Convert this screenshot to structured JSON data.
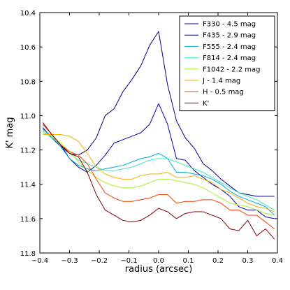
{
  "chart_data": {
    "type": "line",
    "title": "",
    "xlabel": "radius (arcsec)",
    "ylabel": "K' mag",
    "xlim": [
      -0.4,
      0.4
    ],
    "ylim": [
      11.8,
      10.4
    ],
    "y_inverted": true,
    "grid": false,
    "legend_position": "top-right",
    "x_ticks": [
      -0.4,
      -0.3,
      -0.2,
      -0.1,
      0.0,
      0.1,
      0.2,
      0.3,
      0.4
    ],
    "x_tick_labels": [
      "−0.4",
      "−0.3",
      "−0.2",
      "−0.1",
      "0.0",
      "0.1",
      "0.2",
      "0.3",
      "0.4"
    ],
    "y_ticks": [
      10.4,
      10.6,
      10.8,
      11.0,
      11.2,
      11.4,
      11.6,
      11.8
    ],
    "y_tick_labels": [
      "10.4",
      "10.6",
      "10.8",
      "11.0",
      "11.2",
      "11.4",
      "11.6",
      "11.8"
    ],
    "x": [
      -0.39,
      -0.36,
      -0.33,
      -0.3,
      -0.27,
      -0.24,
      -0.21,
      -0.18,
      -0.15,
      -0.12,
      -0.09,
      -0.06,
      -0.03,
      0.0,
      0.03,
      0.06,
      0.09,
      0.12,
      0.15,
      0.18,
      0.21,
      0.24,
      0.27,
      0.3,
      0.33,
      0.36,
      0.39
    ],
    "series": [
      {
        "name": "F330 - 4.5 mag",
        "color": "#0000b0",
        "values": [
          11.05,
          11.11,
          11.17,
          11.25,
          11.3,
          11.33,
          11.29,
          11.23,
          11.16,
          11.14,
          11.12,
          11.1,
          11.05,
          10.93,
          11.05,
          11.25,
          11.26,
          11.32,
          11.36,
          11.4,
          11.43,
          11.47,
          11.53,
          11.55,
          11.55,
          11.59,
          11.6
        ]
      },
      {
        "name": "F435 - 2.9 mag",
        "color": "#000080",
        "values": [
          11.07,
          11.13,
          11.18,
          11.22,
          11.23,
          11.2,
          11.13,
          11.0,
          10.96,
          10.86,
          10.79,
          10.71,
          10.59,
          10.51,
          10.82,
          11.03,
          11.13,
          11.19,
          11.28,
          11.32,
          11.37,
          11.41,
          11.45,
          11.46,
          11.47,
          11.47,
          11.47
        ]
      },
      {
        "name": "F555 - 2.4 mag",
        "color": "#00a8e0",
        "values": [
          11.08,
          11.12,
          11.18,
          11.25,
          11.29,
          11.31,
          11.32,
          11.31,
          11.3,
          11.29,
          11.27,
          11.25,
          11.24,
          11.22,
          11.25,
          11.33,
          11.33,
          11.34,
          11.35,
          11.37,
          11.4,
          11.44,
          11.47,
          11.49,
          11.51,
          11.53,
          11.58
        ]
      },
      {
        "name": "F814 - 2.4 mag",
        "color": "#40e8c0",
        "values": [
          11.09,
          11.13,
          11.17,
          11.22,
          11.26,
          11.28,
          11.3,
          11.32,
          11.32,
          11.31,
          11.3,
          11.28,
          11.26,
          11.25,
          11.25,
          11.27,
          11.29,
          11.31,
          11.33,
          11.36,
          11.39,
          11.42,
          11.45,
          11.47,
          11.49,
          11.52,
          11.55
        ]
      },
      {
        "name": "F1042 - 2.2 mag",
        "color": "#a8f030",
        "values": [
          11.1,
          11.12,
          11.16,
          11.21,
          11.27,
          11.32,
          11.36,
          11.39,
          11.41,
          11.42,
          11.42,
          11.41,
          11.39,
          11.37,
          11.37,
          11.38,
          11.39,
          11.4,
          11.42,
          11.45,
          11.48,
          11.51,
          11.52,
          11.53,
          11.55,
          11.57,
          11.58
        ]
      },
      {
        "name": "J - 1.4 mag",
        "color": "#f0b000",
        "values": [
          11.11,
          11.11,
          11.11,
          11.12,
          11.15,
          11.22,
          11.3,
          11.34,
          11.36,
          11.37,
          11.37,
          11.35,
          11.34,
          11.34,
          11.33,
          11.36,
          11.36,
          11.35,
          11.37,
          11.39,
          11.43,
          11.45,
          11.48,
          11.51,
          11.53,
          11.54,
          11.56
        ]
      },
      {
        "name": "H - 0.5 mag",
        "color": "#f04000",
        "values": [
          11.05,
          11.11,
          11.17,
          11.21,
          11.23,
          11.28,
          11.37,
          11.45,
          11.48,
          11.5,
          11.5,
          11.49,
          11.48,
          11.46,
          11.46,
          11.51,
          11.5,
          11.5,
          11.49,
          11.49,
          11.51,
          11.55,
          11.55,
          11.58,
          11.58,
          11.62,
          11.66
        ]
      },
      {
        "name": "K'",
        "color": "#800000",
        "values": [
          11.04,
          11.11,
          11.17,
          11.22,
          11.24,
          11.33,
          11.46,
          11.55,
          11.58,
          11.61,
          11.62,
          11.61,
          11.58,
          11.54,
          11.56,
          11.6,
          11.57,
          11.56,
          11.56,
          11.58,
          11.6,
          11.66,
          11.67,
          11.61,
          11.7,
          11.66,
          11.72
        ]
      }
    ]
  }
}
